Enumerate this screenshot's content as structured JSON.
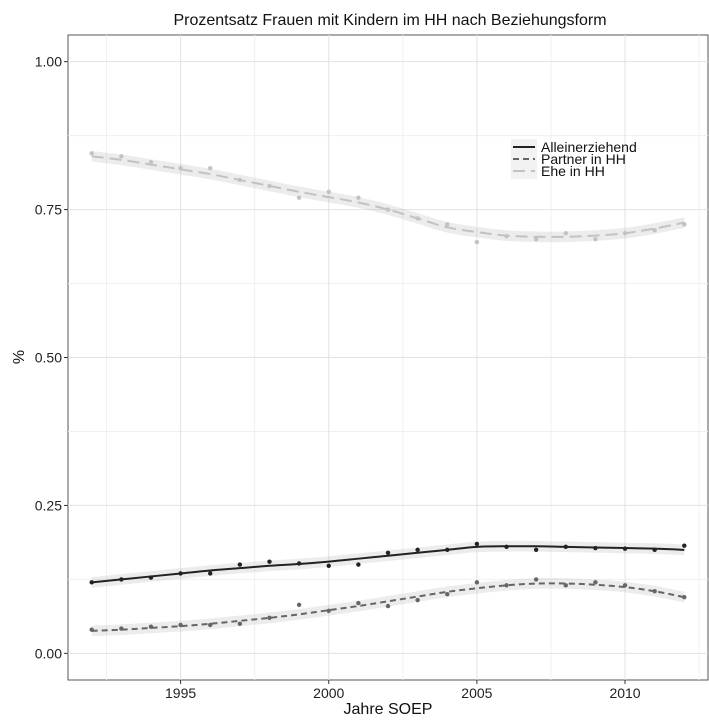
{
  "chart_data": {
    "type": "line",
    "title": "Prozentsatz Frauen mit Kindern im HH nach Beziehungsform",
    "xlabel": "Jahre SOEP",
    "ylabel": "%",
    "xlim": [
      1991.2,
      2012.8
    ],
    "ylim": [
      -0.045,
      1.045
    ],
    "x_ticks": [
      1995,
      2000,
      2005,
      2010
    ],
    "x_tick_labels": [
      "1995",
      "2000",
      "2005",
      "2010"
    ],
    "y_ticks": [
      0,
      0.25,
      0.5,
      0.75,
      1.0
    ],
    "y_tick_labels": [
      "0.00",
      "0.25",
      "0.50",
      "0.75",
      "1.00"
    ],
    "grid": true,
    "legend_position": "top-right",
    "x": [
      1992,
      1993,
      1994,
      1995,
      1996,
      1997,
      1998,
      1999,
      2000,
      2001,
      2002,
      2003,
      2004,
      2005,
      2006,
      2007,
      2008,
      2009,
      2010,
      2011,
      2012
    ],
    "series": [
      {
        "name": "Alleinerziehend",
        "color": "#222222",
        "dash": "solid",
        "points": [
          0.12,
          0.125,
          0.128,
          0.135,
          0.135,
          0.15,
          0.155,
          0.152,
          0.148,
          0.15,
          0.17,
          0.175,
          0.175,
          0.185,
          0.18,
          0.175,
          0.18,
          0.178,
          0.177,
          0.175,
          0.182
        ],
        "smooth": [
          0.12,
          0.125,
          0.13,
          0.135,
          0.14,
          0.144,
          0.148,
          0.151,
          0.155,
          0.16,
          0.165,
          0.17,
          0.175,
          0.18,
          0.181,
          0.181,
          0.18,
          0.179,
          0.178,
          0.177,
          0.175
        ]
      },
      {
        "name": "Partner in HH",
        "color": "#666666",
        "dash": "dashed",
        "points": [
          0.04,
          0.042,
          0.045,
          0.048,
          0.048,
          0.05,
          0.06,
          0.082,
          0.072,
          0.085,
          0.08,
          0.09,
          0.1,
          0.12,
          0.115,
          0.125,
          0.115,
          0.12,
          0.115,
          0.105,
          0.095
        ],
        "smooth": [
          0.038,
          0.04,
          0.043,
          0.046,
          0.05,
          0.055,
          0.06,
          0.066,
          0.073,
          0.08,
          0.088,
          0.096,
          0.104,
          0.11,
          0.115,
          0.118,
          0.118,
          0.116,
          0.112,
          0.105,
          0.095
        ]
      },
      {
        "name": "Ehe in HH",
        "color": "#c2c2c2",
        "dash": "longdash",
        "points": [
          0.845,
          0.84,
          0.83,
          0.82,
          0.82,
          0.8,
          0.79,
          0.77,
          0.78,
          0.77,
          0.75,
          0.735,
          0.725,
          0.695,
          0.705,
          0.7,
          0.71,
          0.7,
          0.71,
          0.715,
          0.725
        ],
        "smooth": [
          0.84,
          0.834,
          0.826,
          0.818,
          0.81,
          0.8,
          0.79,
          0.78,
          0.771,
          0.762,
          0.75,
          0.735,
          0.72,
          0.712,
          0.706,
          0.704,
          0.704,
          0.706,
          0.71,
          0.718,
          0.728
        ]
      }
    ]
  }
}
